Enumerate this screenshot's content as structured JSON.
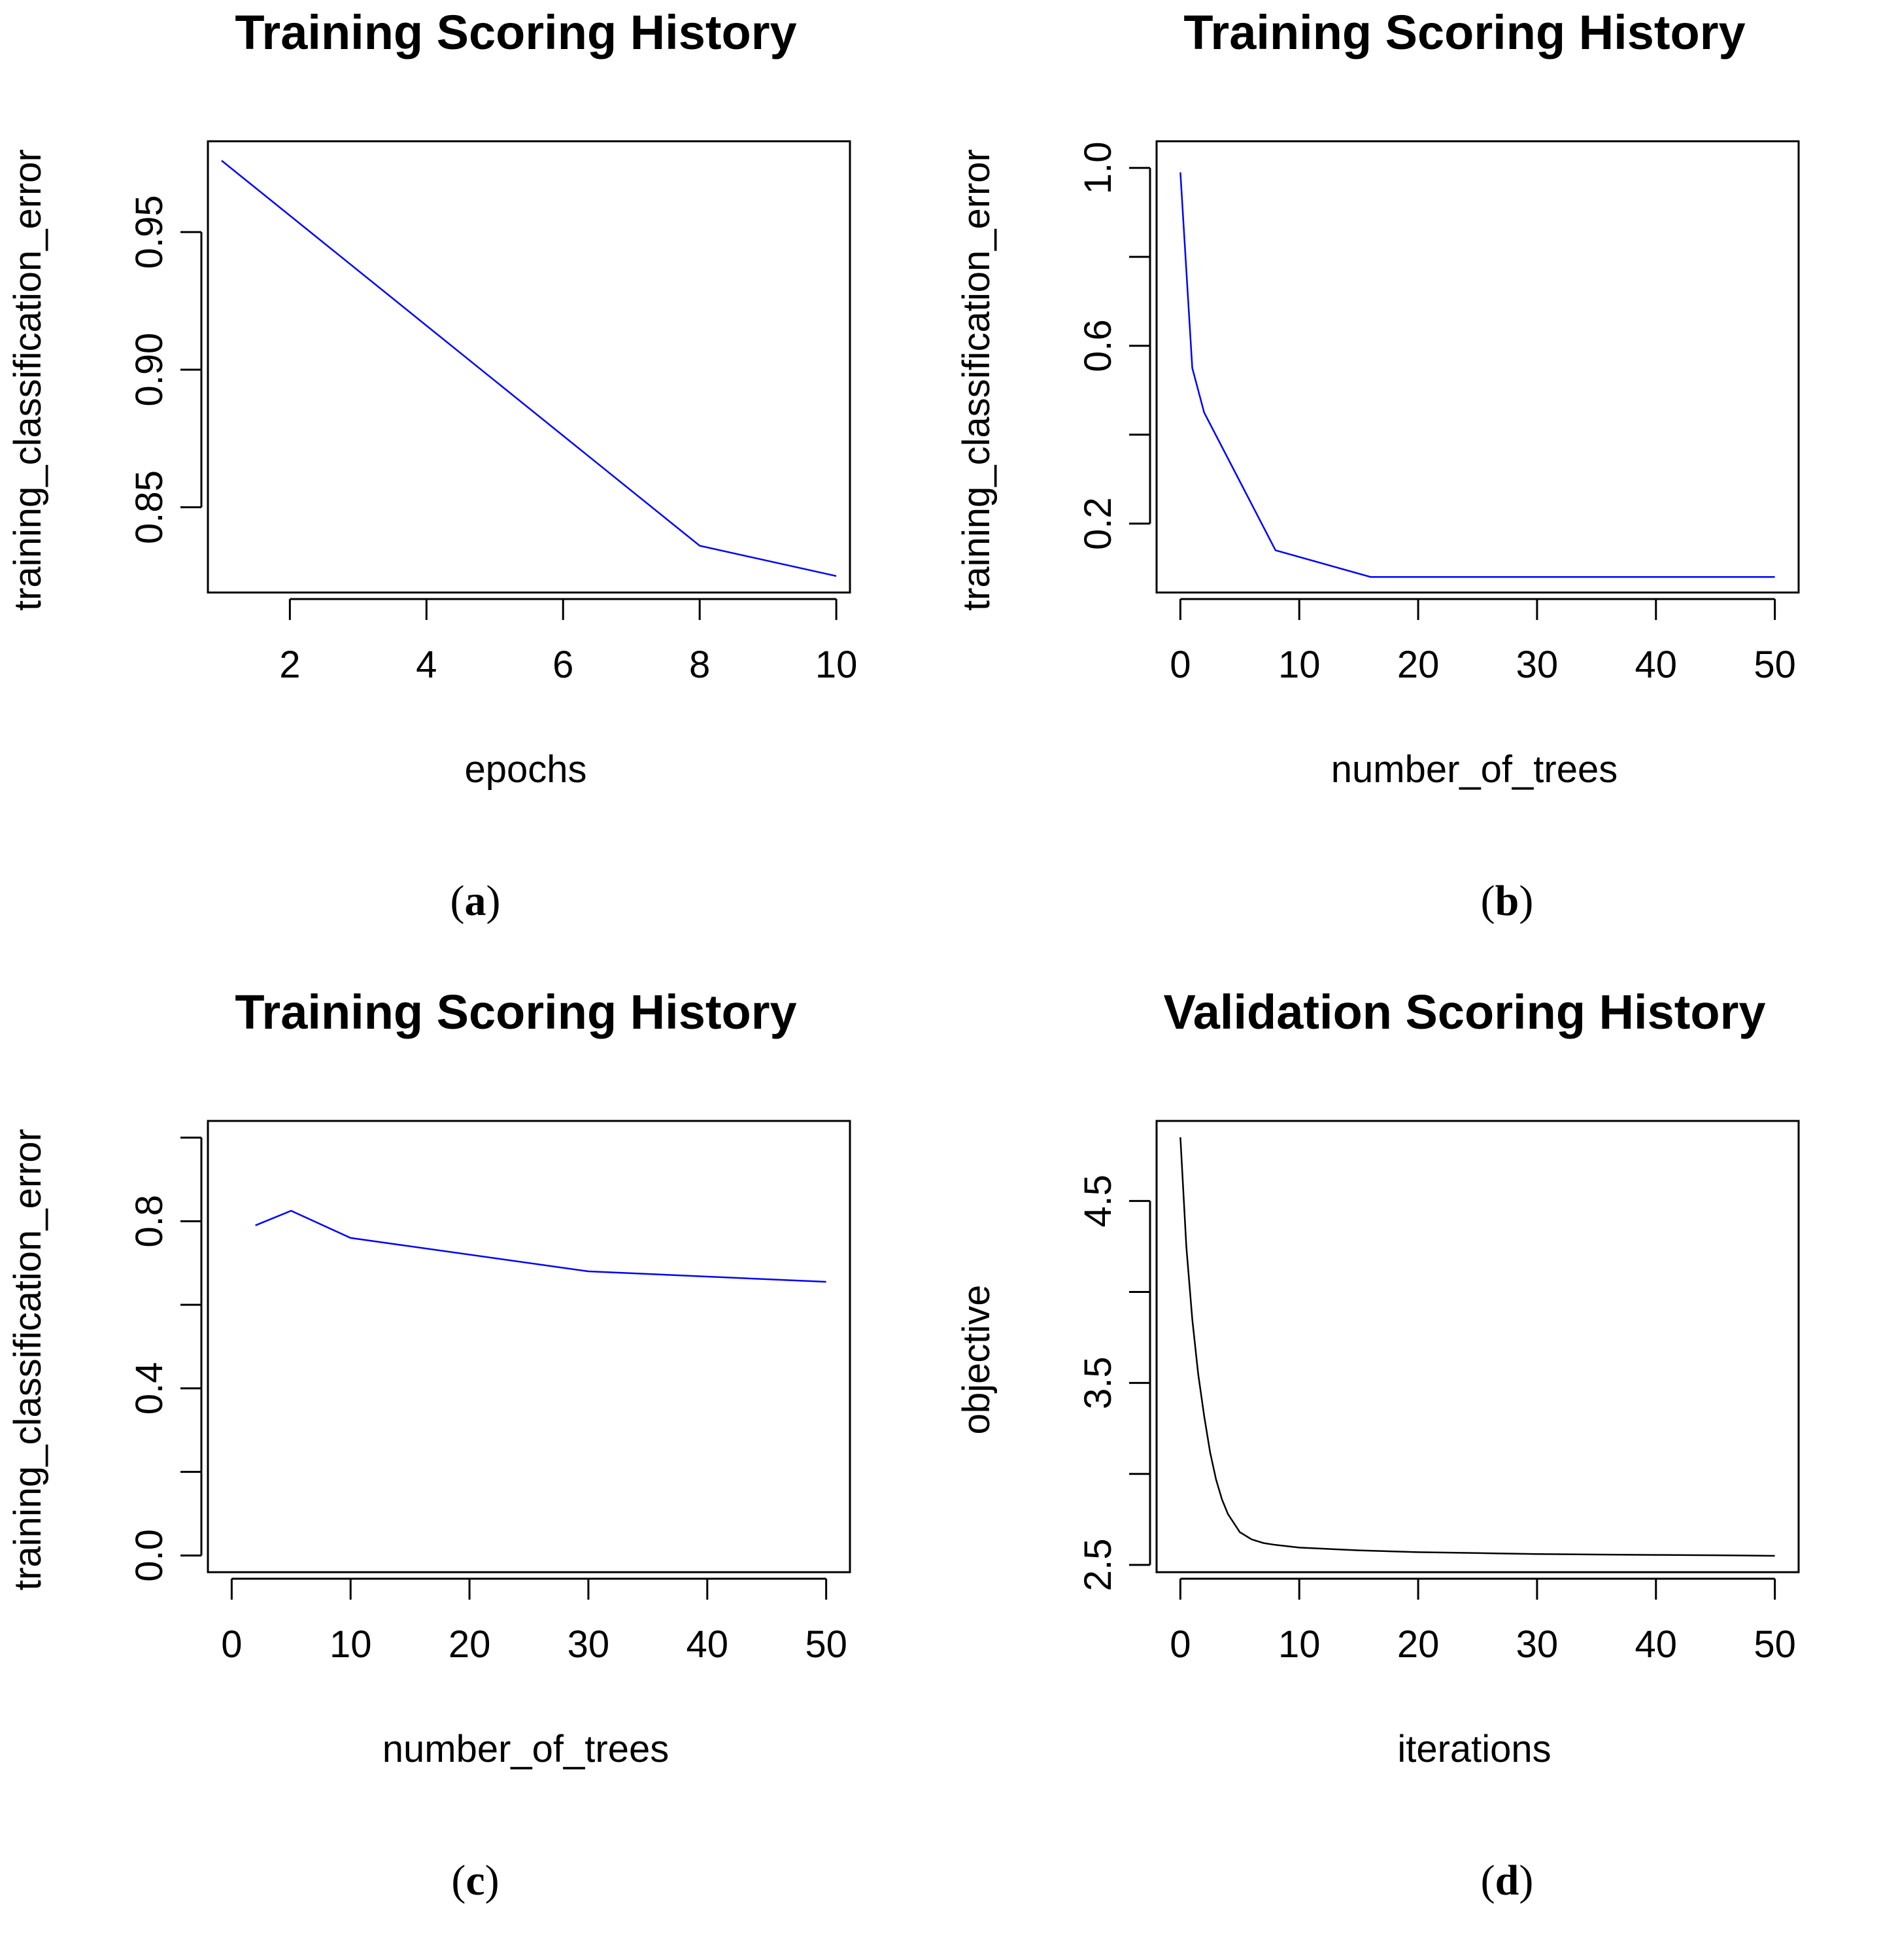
{
  "chart_data": [
    {
      "type": "line",
      "panel": "a",
      "title": "Training Scoring History",
      "xlabel": "epochs",
      "ylabel": "training_classification_error",
      "x": [
        1,
        8,
        10
      ],
      "y": [
        0.976,
        0.836,
        0.825
      ],
      "xlim": [
        0.8,
        10.2
      ],
      "ylim": [
        0.819,
        0.983
      ],
      "xticks": [
        2,
        4,
        6,
        8,
        10
      ],
      "xtick_labels": [
        "2",
        "4",
        "6",
        "8",
        "10"
      ],
      "yticks": [
        0.85,
        0.9,
        0.95
      ],
      "ytick_labels": [
        "0.85",
        "0.90",
        "0.95"
      ],
      "line_color": "#0000ff",
      "caption": "a"
    },
    {
      "type": "line",
      "panel": "b",
      "title": "Training Scoring History",
      "xlabel": "number_of_trees",
      "ylabel": "training_classification_error",
      "x": [
        0,
        1,
        2,
        8,
        16,
        50
      ],
      "y": [
        0.99,
        0.55,
        0.45,
        0.14,
        0.08,
        0.08
      ],
      "xlim": [
        -2,
        52
      ],
      "ylim": [
        0.045,
        1.06
      ],
      "xticks": [
        0,
        10,
        20,
        30,
        40,
        50
      ],
      "xtick_labels": [
        "0",
        "10",
        "20",
        "30",
        "40",
        "50"
      ],
      "yticks": [
        0.2,
        0.4,
        0.6,
        0.8,
        1.0
      ],
      "ytick_labels": [
        "0.2",
        "",
        "0.6",
        "",
        "1.0"
      ],
      "line_color": "#0000ff",
      "caption": "b"
    },
    {
      "type": "line",
      "panel": "c",
      "title": "Training Scoring History",
      "xlabel": "number_of_trees",
      "ylabel": "training_classification_error",
      "x": [
        2,
        5,
        10,
        30,
        50
      ],
      "y": [
        0.79,
        0.825,
        0.76,
        0.68,
        0.655
      ],
      "xlim": [
        -2,
        52
      ],
      "ylim": [
        -0.04,
        1.04
      ],
      "xticks": [
        0,
        10,
        20,
        30,
        40,
        50
      ],
      "xtick_labels": [
        "0",
        "10",
        "20",
        "30",
        "40",
        "50"
      ],
      "yticks": [
        0.0,
        0.2,
        0.4,
        0.6,
        0.8,
        1.0
      ],
      "ytick_labels": [
        "0.0",
        "",
        "0.4",
        "",
        "0.8",
        ""
      ],
      "line_color": "#0000ff",
      "caption": "c"
    },
    {
      "type": "line",
      "panel": "d",
      "title": "Validation Scoring History",
      "xlabel": "iterations",
      "ylabel": "objective",
      "x": [
        0,
        0.5,
        1,
        1.5,
        2,
        2.5,
        3,
        3.5,
        4,
        5,
        6,
        7,
        8,
        10,
        15,
        20,
        25,
        30,
        35,
        40,
        45,
        50
      ],
      "y": [
        4.85,
        4.25,
        3.85,
        3.55,
        3.32,
        3.12,
        2.97,
        2.86,
        2.78,
        2.68,
        2.64,
        2.62,
        2.61,
        2.595,
        2.58,
        2.57,
        2.565,
        2.56,
        2.557,
        2.555,
        2.553,
        2.55
      ],
      "xlim": [
        -2,
        52
      ],
      "ylim": [
        2.46,
        4.94
      ],
      "xticks": [
        0,
        10,
        20,
        30,
        40,
        50
      ],
      "xtick_labels": [
        "0",
        "10",
        "20",
        "30",
        "40",
        "50"
      ],
      "yticks": [
        2.5,
        3.0,
        3.5,
        4.0,
        4.5
      ],
      "ytick_labels": [
        "2.5",
        "",
        "3.5",
        "",
        "4.5"
      ],
      "line_color": "#000000",
      "caption": "d"
    }
  ]
}
